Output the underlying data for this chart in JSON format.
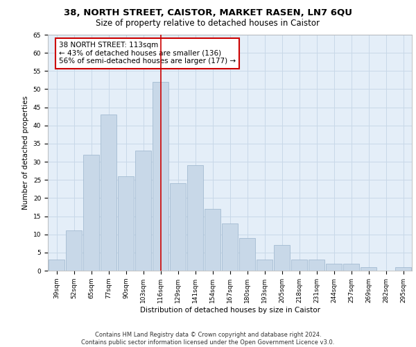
{
  "title_line1": "38, NORTH STREET, CAISTOR, MARKET RASEN, LN7 6QU",
  "title_line2": "Size of property relative to detached houses in Caistor",
  "xlabel": "Distribution of detached houses by size in Caistor",
  "ylabel": "Number of detached properties",
  "categories": [
    "39sqm",
    "52sqm",
    "65sqm",
    "77sqm",
    "90sqm",
    "103sqm",
    "116sqm",
    "129sqm",
    "141sqm",
    "154sqm",
    "167sqm",
    "180sqm",
    "193sqm",
    "205sqm",
    "218sqm",
    "231sqm",
    "244sqm",
    "257sqm",
    "269sqm",
    "282sqm",
    "295sqm"
  ],
  "values": [
    3,
    11,
    32,
    43,
    26,
    33,
    52,
    24,
    29,
    17,
    13,
    9,
    3,
    7,
    3,
    3,
    2,
    2,
    1,
    0,
    1
  ],
  "highlight_index": 6,
  "bar_color": "#c8d8e8",
  "bar_edgecolor": "#9ab4cc",
  "highlight_line_color": "#cc0000",
  "annotation_text": "38 NORTH STREET: 113sqm\n← 43% of detached houses are smaller (136)\n56% of semi-detached houses are larger (177) →",
  "annotation_box_color": "white",
  "annotation_box_edgecolor": "#cc0000",
  "ylim": [
    0,
    65
  ],
  "yticks": [
    0,
    5,
    10,
    15,
    20,
    25,
    30,
    35,
    40,
    45,
    50,
    55,
    60,
    65
  ],
  "grid_color": "#c8d8e8",
  "background_color": "#e4eef8",
  "footer_line1": "Contains HM Land Registry data © Crown copyright and database right 2024.",
  "footer_line2": "Contains public sector information licensed under the Open Government Licence v3.0.",
  "title_fontsize": 9.5,
  "subtitle_fontsize": 8.5,
  "axis_label_fontsize": 7.5,
  "tick_fontsize": 6.5,
  "annotation_fontsize": 7.5,
  "footer_fontsize": 6.0
}
